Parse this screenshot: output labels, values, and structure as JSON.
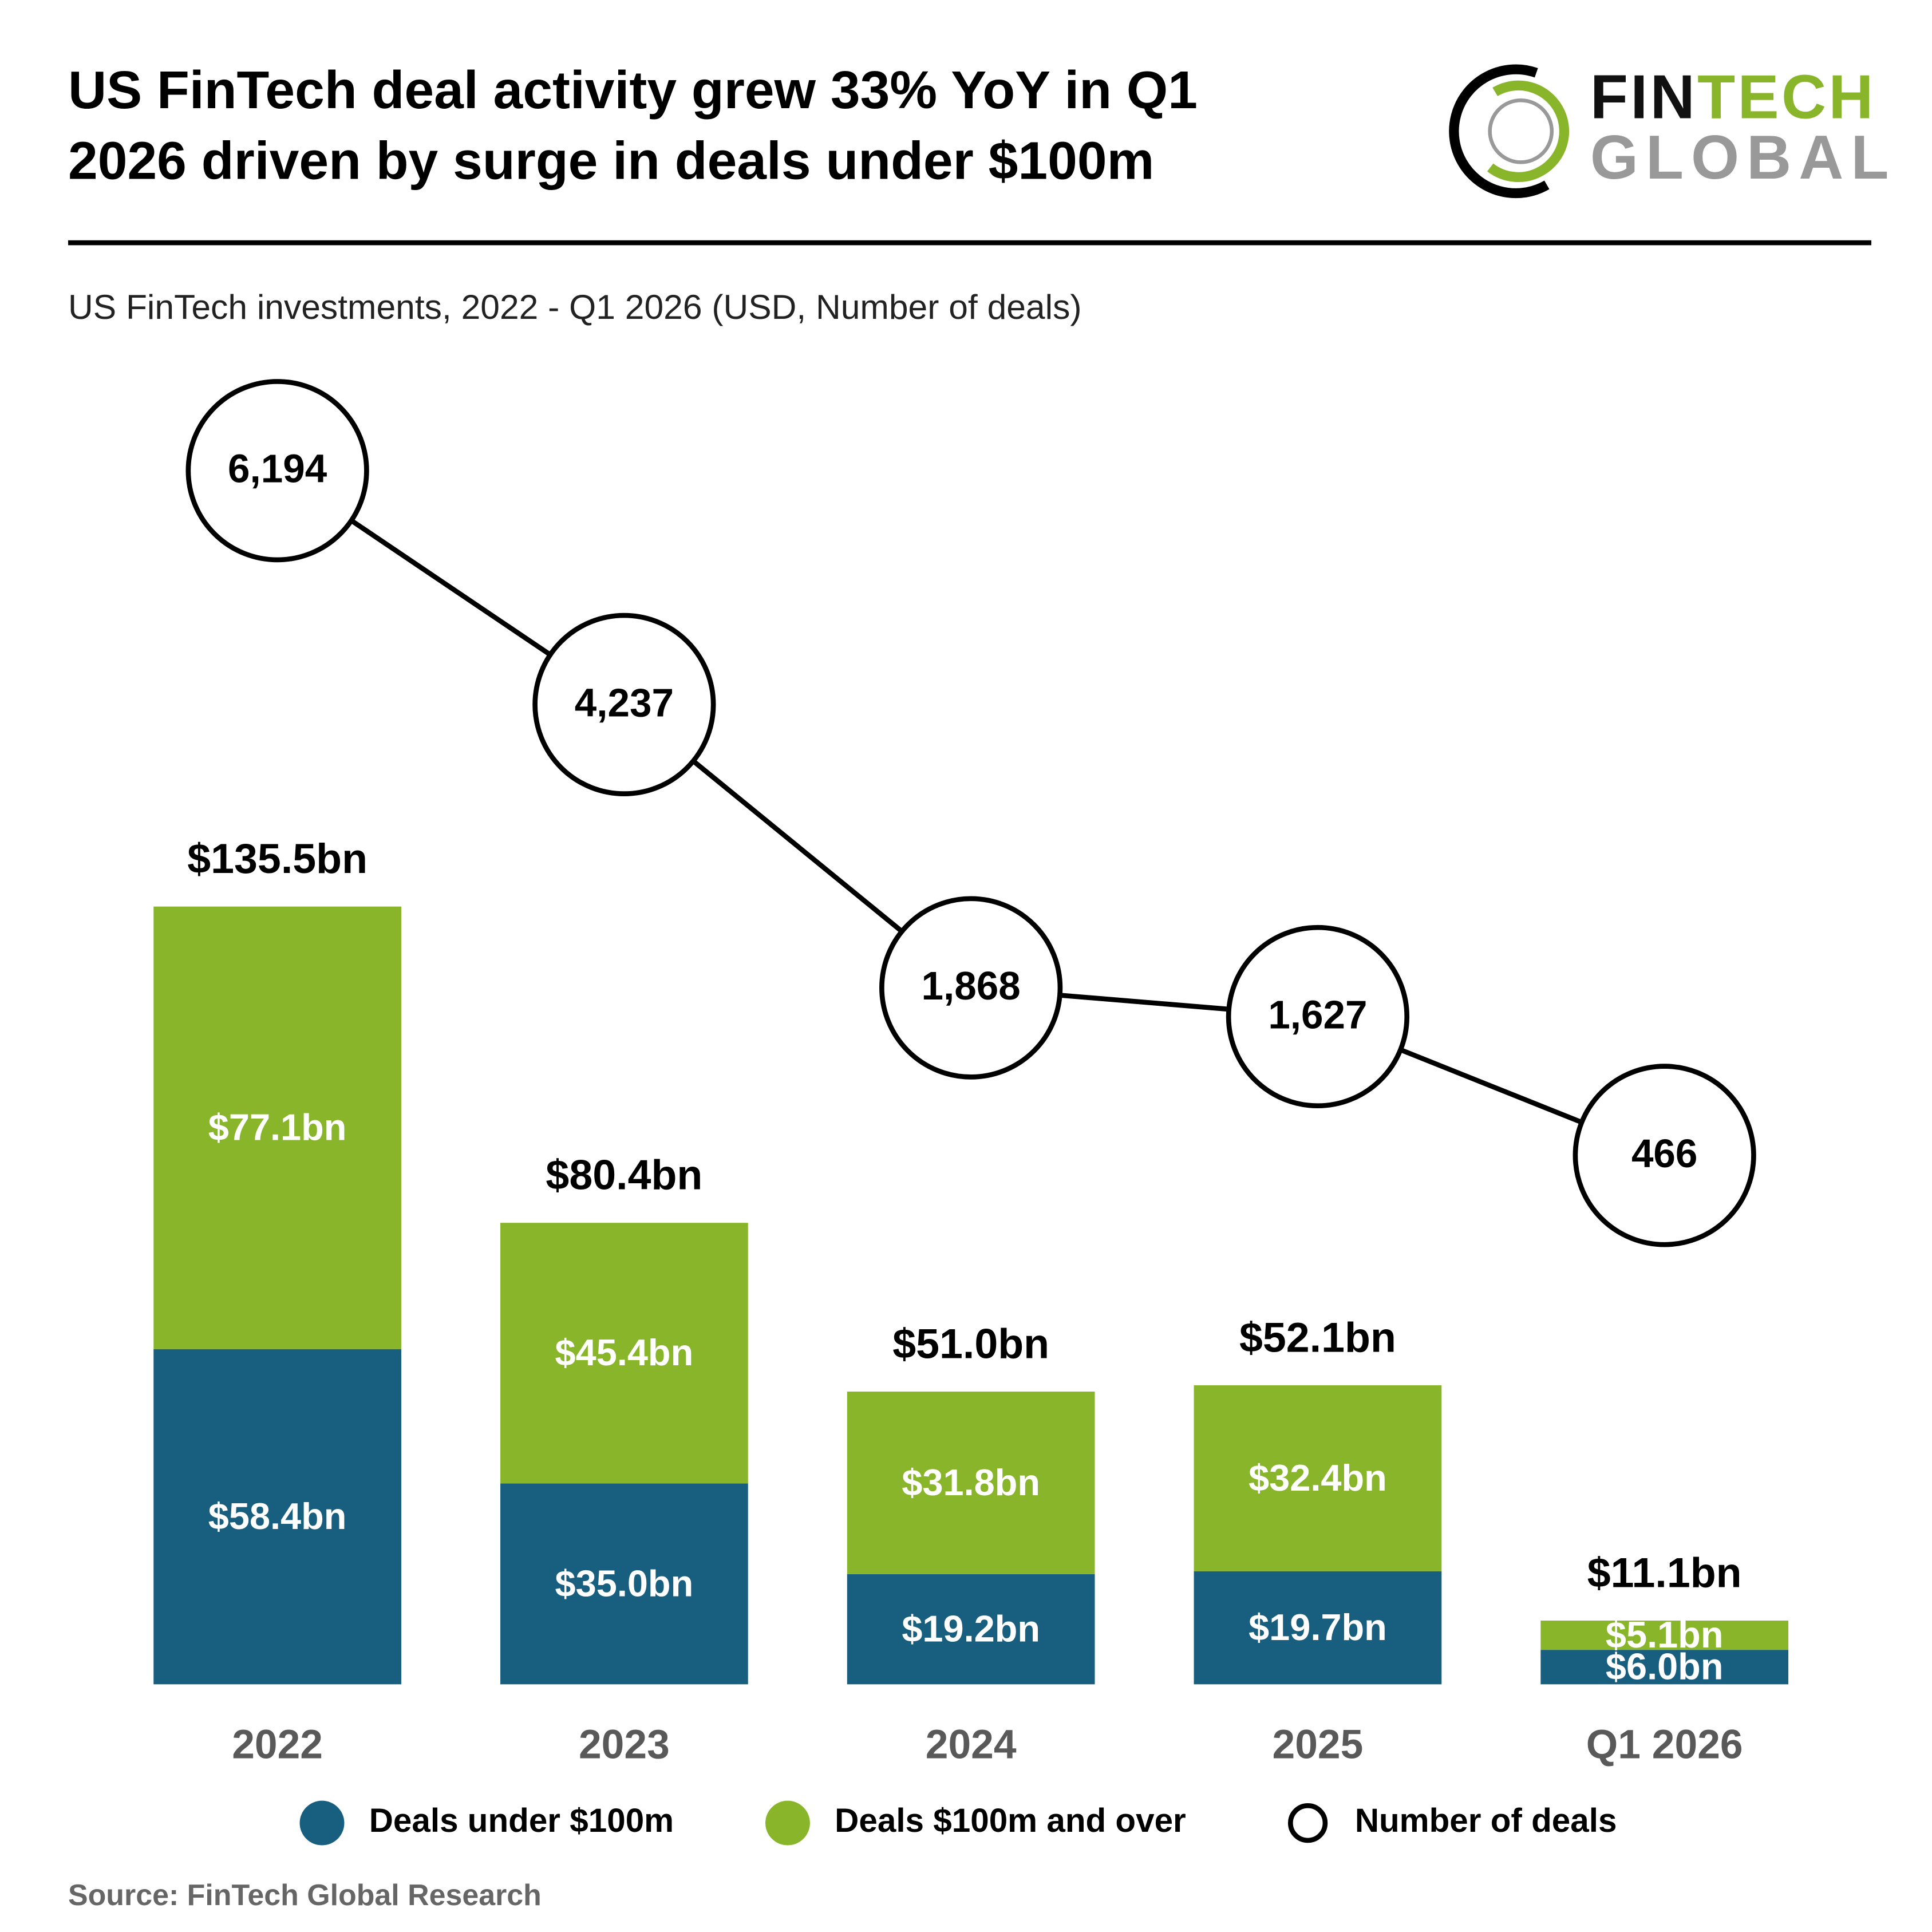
{
  "chart_data": {
    "type": "stacked-bar-line",
    "title_lines": [
      "US FinTech deal activity grew 33% YoY in Q1",
      "2026 driven by surge in deals under $100m"
    ],
    "subtitle": "US FinTech investments, 2022 - Q1 2026 (USD, Number of deals)",
    "logo": {
      "first": "FIN",
      "second": "TECH",
      "third": "GLOBAL"
    },
    "source": "Source: FinTech Global Research",
    "categories": [
      "2022",
      "2023",
      "2024",
      "2025",
      "Q1 2026"
    ],
    "ylim": [
      0,
      135.5
    ],
    "y2lim": [
      -3958,
      7023
    ],
    "series": [
      {
        "name": "Deals under $100m",
        "color": "#175e7f",
        "values": [
          58.4,
          35.0,
          19.2,
          19.7,
          6.0
        ],
        "value_labels": [
          "$58.4bn",
          "$35.0bn",
          "$19.2bn",
          "$19.7bn",
          "$6.0bn"
        ]
      },
      {
        "name": "Deals $100m and over",
        "color": "#88b52a",
        "values": [
          77.1,
          45.4,
          31.8,
          32.4,
          5.1
        ],
        "value_labels": [
          "$77.1bn",
          "$45.4bn",
          "$31.8bn",
          "$32.4bn",
          "$5.1bn"
        ]
      },
      {
        "name": "Number of deals",
        "color": "#000000",
        "axis": "y2",
        "values": [
          6194,
          4237,
          1868,
          1627,
          466
        ],
        "value_labels": [
          "6,194",
          "4,237",
          "1,868",
          "1,627",
          "466"
        ]
      }
    ],
    "totals": {
      "values": [
        135.5,
        80.4,
        51.0,
        52.1,
        11.1
      ],
      "value_labels": [
        "$135.5bn",
        "$80.4bn",
        "$51.0bn",
        "$52.1bn",
        "$11.1bn"
      ]
    }
  }
}
